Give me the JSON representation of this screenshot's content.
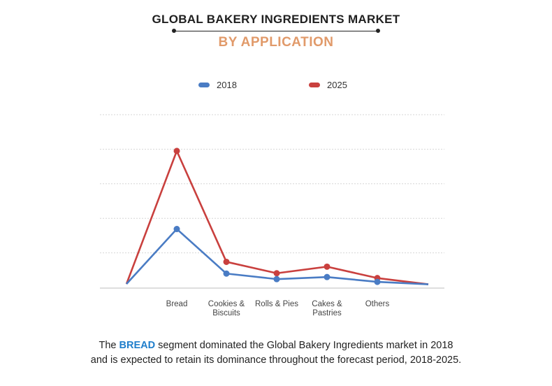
{
  "header": {
    "title": "GLOBAL BAKERY INGREDIENTS MARKET",
    "subtitle": "BY APPLICATION"
  },
  "colors": {
    "series_2018": "#4a7cc4",
    "series_2025": "#c9403e",
    "subtitle": "#e19a6a",
    "highlight": "#1f7ecb",
    "grid": "#d6d6d6"
  },
  "chart_data": {
    "type": "line",
    "title": "GLOBAL BAKERY INGREDIENTS MARKET",
    "subtitle": "BY APPLICATION",
    "categories": [
      "",
      "Bread",
      "Cookies & Biscuits",
      "Rolls & Pies",
      "Cakes & Pastries",
      "Others",
      ""
    ],
    "category_lines": [
      [],
      [
        "Bread"
      ],
      [
        "Cookies &",
        "Biscuits"
      ],
      [
        "Rolls & Pies"
      ],
      [
        "Cakes &",
        "Pastries"
      ],
      [
        "Others"
      ],
      []
    ],
    "series": [
      {
        "name": "2018",
        "values": [
          1.0,
          16.9,
          4.0,
          2.4,
          3.0,
          1.6,
          0.9
        ]
      },
      {
        "name": "2025",
        "values": [
          1.0,
          39.5,
          7.4,
          4.1,
          6.0,
          2.7,
          0.9
        ]
      }
    ],
    "markers_on": [
      1,
      2,
      3,
      4,
      5
    ],
    "ylim": [
      0,
      50
    ],
    "y_gridlines": [
      10,
      20,
      30,
      40,
      50
    ],
    "y_tick_labels_shown": false,
    "grid": true,
    "legend_position": "top-center"
  },
  "footer": {
    "caption_before": "The ",
    "caption_highlight": "BREAD",
    "caption_after_line1": " segment dominated the Global Bakery Ingredients market in 2018",
    "caption_line2": "and is expected to retain its dominance throughout the forecast period, 2018-2025."
  }
}
